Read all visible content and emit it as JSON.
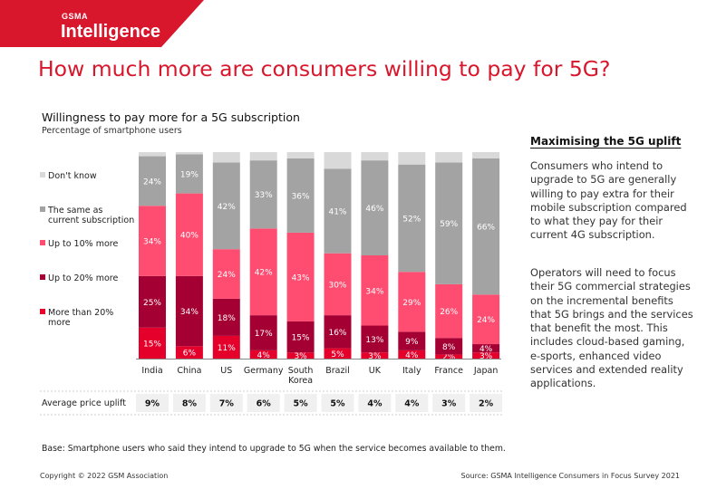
{
  "brand": {
    "name_small": "GSMA",
    "name_large": "Intelligence",
    "color": "#d8172c"
  },
  "page_title": "How much more are consumers willing to pay for 5G?",
  "sidebar": {
    "heading": "Maximising the 5G uplift",
    "paragraph_1": "Consumers who intend to upgrade to 5G are generally willing to pay extra for their mobile subscription compared to what they pay for their current 4G subscription.",
    "paragraph_2": "Operators will need to focus their 5G commercial strategies on the incremental benefits that 5G brings and the services that benefit the most. This includes cloud-based gaming, e-sports, enhanced video services and extended reality applications."
  },
  "footer": {
    "base_note": "Base: Smartphone users who said they intend to upgrade to 5G when the service becomes available to them.",
    "copyright": "Copyright © 2022 GSM Association",
    "source": "Source: GSMA Intelligence Consumers in Focus Survey 2021"
  },
  "chart_data": {
    "type": "bar",
    "stacked": true,
    "percent_of_total": true,
    "title": "Willingness to pay more for a 5G subscription",
    "subtitle": "Percentage of smartphone users",
    "categories": [
      "India",
      "China",
      "US",
      "Germany",
      "South Korea",
      "Brazil",
      "UK",
      "Italy",
      "France",
      "Japan"
    ],
    "category_lines": [
      [
        "India"
      ],
      [
        "China"
      ],
      [
        "US"
      ],
      [
        "Germany"
      ],
      [
        "South",
        "Korea"
      ],
      [
        "Brazil"
      ],
      [
        "UK"
      ],
      [
        "Italy"
      ],
      [
        "France"
      ],
      [
        "Japan"
      ]
    ],
    "series": [
      {
        "name": "More than 20% more",
        "legend_lines": [
          "More than 20%",
          "more"
        ],
        "color": "#e4002b",
        "label_color": "#ffffff",
        "values": [
          15,
          6,
          11,
          4,
          3,
          5,
          3,
          4,
          2,
          3
        ]
      },
      {
        "name": "Up to 20% more",
        "legend_lines": [
          "Up to 20% more"
        ],
        "color": "#a50034",
        "label_color": "#ffffff",
        "values": [
          25,
          34,
          18,
          17,
          15,
          16,
          13,
          9,
          8,
          4
        ]
      },
      {
        "name": "Up to 10% more",
        "legend_lines": [
          "Up to 10% more"
        ],
        "color": "#ff4d71",
        "label_color": "#ffffff",
        "values": [
          34,
          40,
          24,
          42,
          43,
          30,
          34,
          29,
          26,
          24
        ]
      },
      {
        "name": "The same as current subscription",
        "legend_lines": [
          "The same as",
          "current subscription"
        ],
        "color": "#a3a3a3",
        "label_color": "#ffffff",
        "values": [
          24,
          19,
          42,
          33,
          36,
          41,
          46,
          52,
          59,
          66
        ]
      },
      {
        "name": "Don't know",
        "legend_lines": [
          "Don't know"
        ],
        "color": "#d9d9d9",
        "label_color": "#ffffff",
        "values": [
          2,
          1,
          5,
          4,
          3,
          8,
          4,
          6,
          5,
          3
        ]
      }
    ],
    "value_labels": [
      [
        "15%",
        "6%",
        "11%",
        "4%",
        "3%",
        "5%",
        "3%",
        "4%",
        "2%",
        "3%"
      ],
      [
        "25%",
        "34%",
        "18%",
        "17%",
        "15%",
        "16%",
        "13%",
        "9%",
        "8%",
        "4%"
      ],
      [
        "34%",
        "40%",
        "24%",
        "42%",
        "43%",
        "30%",
        "34%",
        "29%",
        "26%",
        "24%"
      ],
      [
        "24%",
        "19%",
        "42%",
        "33%",
        "36%",
        "41%",
        "46%",
        "52%",
        "59%",
        "66%"
      ],
      [
        "",
        "",
        "",
        "",
        "",
        "",
        "",
        "",
        "",
        ""
      ]
    ],
    "average_price_uplift": {
      "label": "Average price uplift",
      "values": [
        "9%",
        "8%",
        "7%",
        "6%",
        "5%",
        "5%",
        "4%",
        "4%",
        "3%",
        "2%"
      ]
    }
  }
}
